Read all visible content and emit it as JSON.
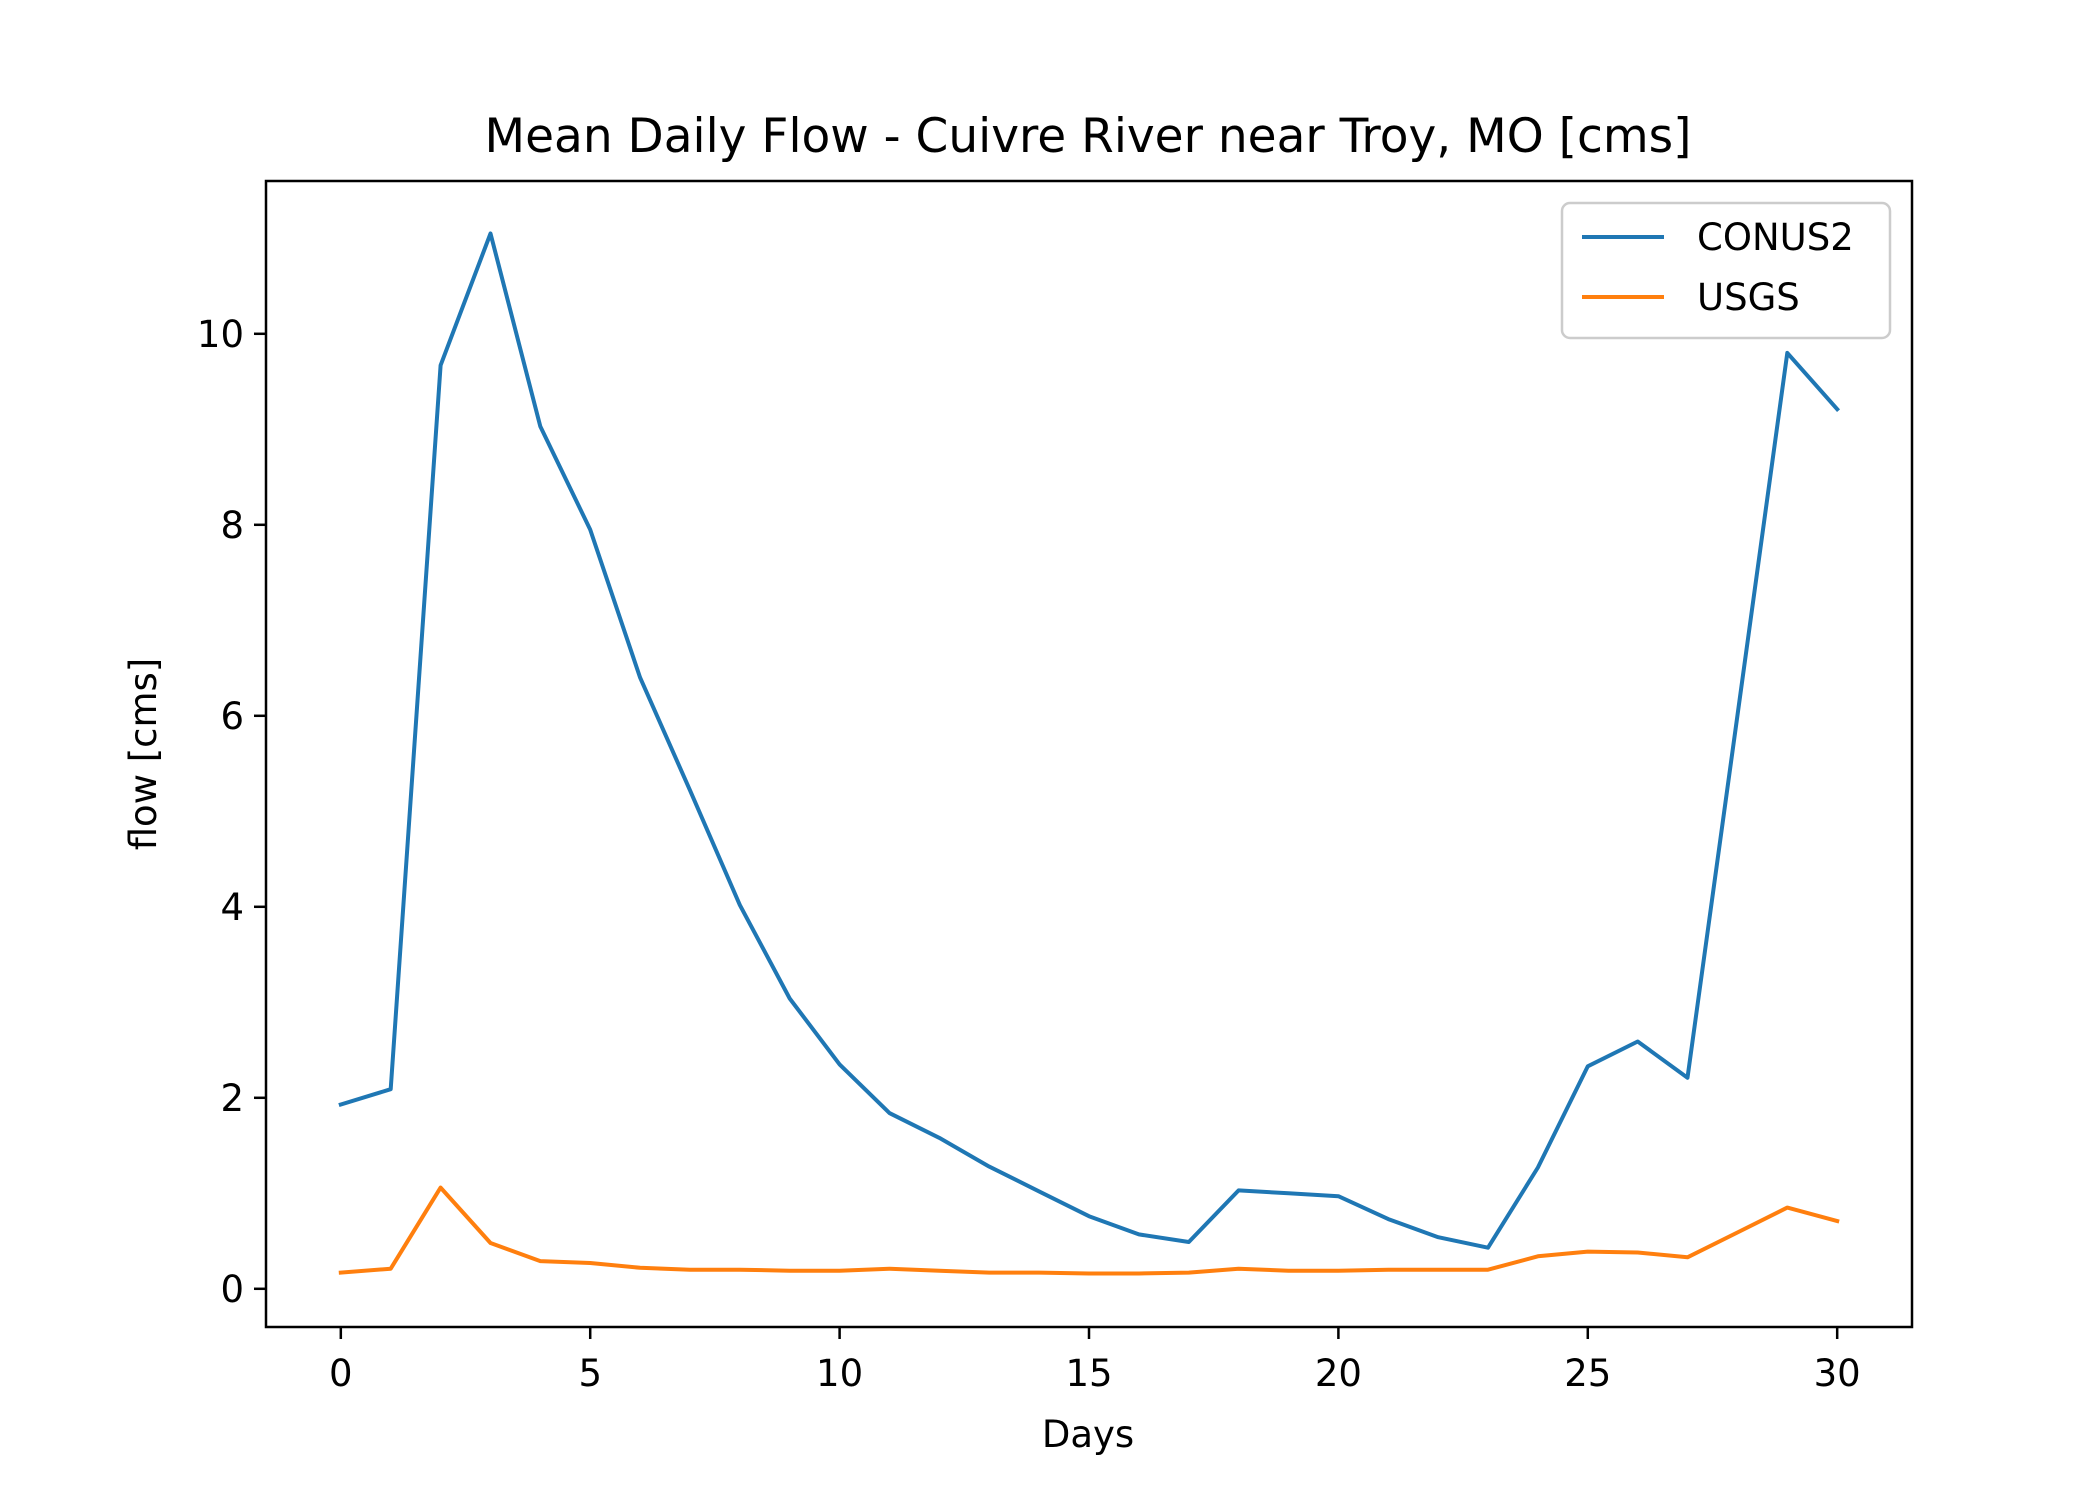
{
  "chart_data": {
    "type": "line",
    "title": "Mean Daily Flow - Cuivre River near Troy, MO [cms]",
    "xlabel": "Days",
    "ylabel": "flow [cms]",
    "xlim": [
      -1.5,
      31.5
    ],
    "ylim": [
      -0.4,
      11.6
    ],
    "xticks": [
      0,
      5,
      10,
      15,
      20,
      25,
      30
    ],
    "yticks": [
      0,
      2,
      4,
      6,
      8,
      10
    ],
    "grid": false,
    "legend_position": "top-right",
    "x": [
      0,
      1,
      2,
      3,
      4,
      5,
      6,
      7,
      8,
      9,
      10,
      11,
      12,
      13,
      14,
      15,
      16,
      17,
      18,
      19,
      20,
      21,
      22,
      23,
      24,
      25,
      26,
      27,
      28,
      29,
      30
    ],
    "series": [
      {
        "name": "CONUS2",
        "color": "#1f77b4",
        "values": [
          1.93,
          2.09,
          9.67,
          11.05,
          9.03,
          7.95,
          6.4,
          5.22,
          4.02,
          3.04,
          2.35,
          1.84,
          1.58,
          1.28,
          1.02,
          0.76,
          0.57,
          0.49,
          1.03,
          1.0,
          0.97,
          0.73,
          0.54,
          0.43,
          1.27,
          2.33,
          2.59,
          2.21,
          6.0,
          9.8,
          9.21
        ]
      },
      {
        "name": "USGS",
        "color": "#ff7f0e",
        "values": [
          0.17,
          0.21,
          1.06,
          0.48,
          0.29,
          0.27,
          0.22,
          0.2,
          0.2,
          0.19,
          0.19,
          0.21,
          0.19,
          0.17,
          0.17,
          0.16,
          0.16,
          0.17,
          0.21,
          0.19,
          0.19,
          0.2,
          0.2,
          0.2,
          0.34,
          0.39,
          0.38,
          0.33,
          0.59,
          0.85,
          0.71
        ]
      }
    ]
  }
}
